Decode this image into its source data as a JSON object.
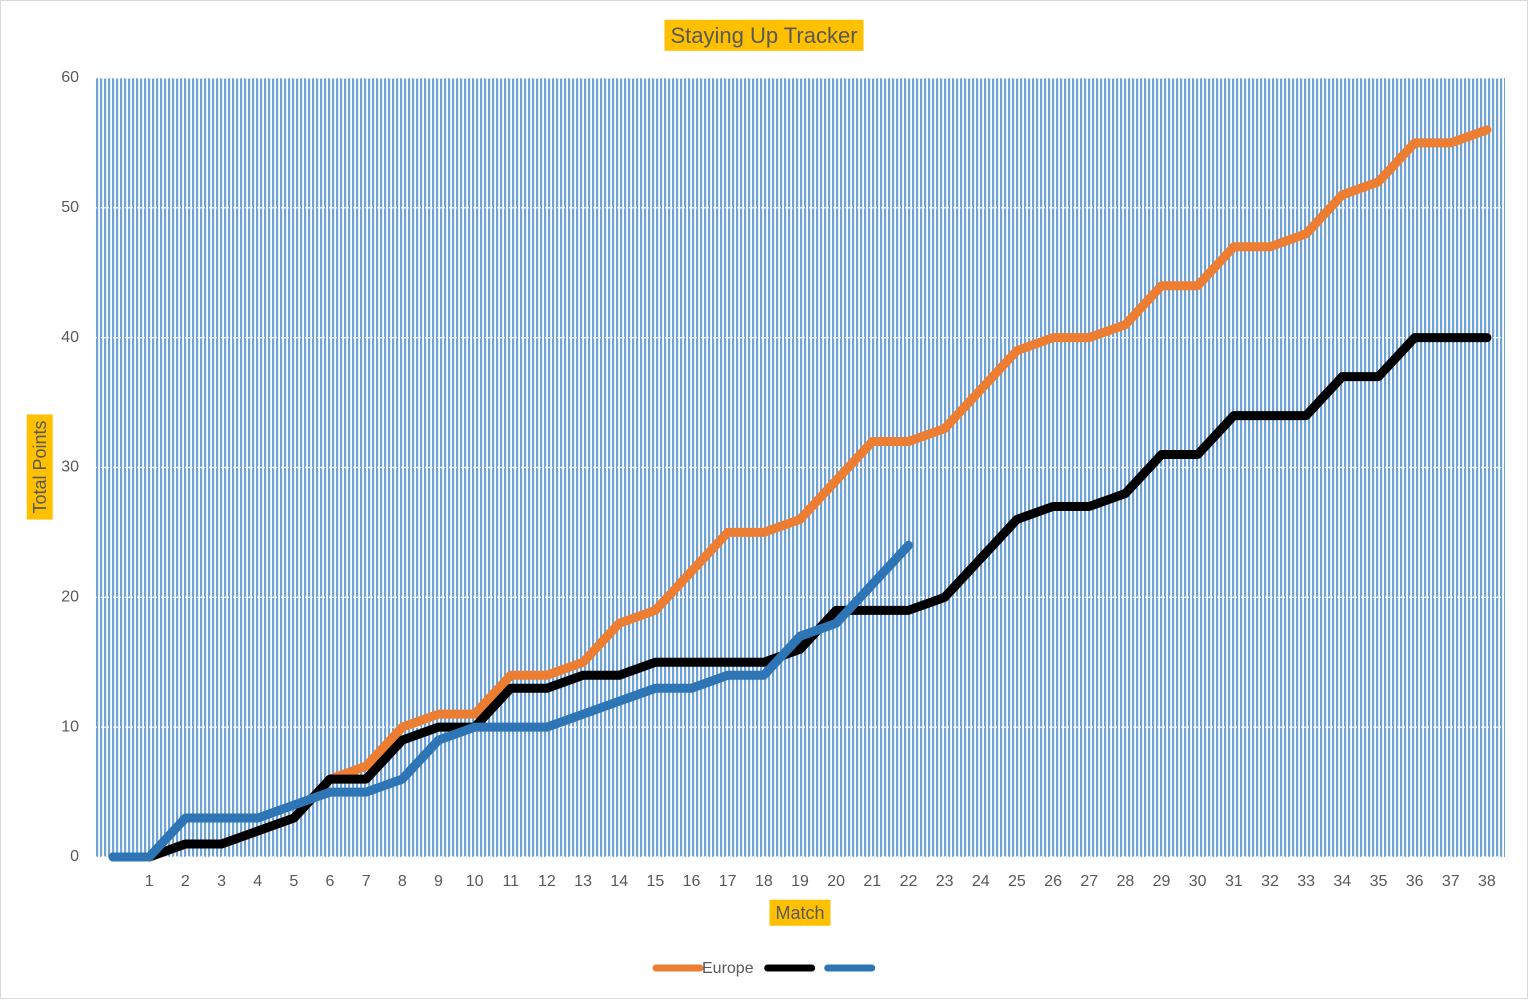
{
  "chart_data": {
    "type": "line",
    "title": "Staying Up Tracker",
    "x_label": "Match",
    "y_label": "Total Points",
    "categories": [
      null,
      "1",
      "2",
      "3",
      "4",
      "5",
      "6",
      "7",
      "8",
      "9",
      "10",
      "11",
      "12",
      "13",
      "14",
      "15",
      "16",
      "17",
      "18",
      "19",
      "20",
      "21",
      "22",
      "23",
      "24",
      "25",
      "26",
      "27",
      "28",
      "29",
      "30",
      "31",
      "32",
      "33",
      "34",
      "35",
      "36",
      "37",
      "38"
    ],
    "series": [
      {
        "name": "Europe",
        "color": "#ed7d31",
        "values": [
          0,
          0,
          1,
          1,
          2,
          3,
          6,
          7,
          10,
          11,
          11,
          14,
          14,
          15,
          18,
          19,
          22,
          25,
          25,
          26,
          29,
          32,
          32,
          33,
          36,
          39,
          40,
          40,
          41,
          44,
          44,
          47,
          47,
          48,
          51,
          52,
          55,
          55,
          56
        ]
      },
      {
        "color": "#000000",
        "values": [
          0,
          0,
          1,
          1,
          2,
          3,
          6,
          6,
          9,
          10,
          10,
          13,
          13,
          14,
          14,
          15,
          15,
          15,
          15,
          16,
          19,
          19,
          19,
          20,
          23,
          26,
          27,
          27,
          28,
          31,
          31,
          34,
          34,
          34,
          37,
          37,
          40,
          40,
          40
        ]
      },
      {
        "color": "#2e75b6",
        "values": [
          0,
          0,
          3,
          3,
          3,
          4,
          5,
          5,
          6,
          9,
          10,
          10,
          10,
          11,
          12,
          13,
          13,
          14,
          14,
          17,
          18,
          21,
          24,
          null,
          null,
          null,
          null,
          null,
          null,
          null,
          null,
          null,
          null,
          null,
          null,
          null,
          null,
          null,
          null
        ]
      }
    ],
    "ylim": [
      0,
      60
    ],
    "yticks": [
      0,
      10,
      20,
      30,
      40,
      50,
      60
    ],
    "grid": true,
    "legend": "bottom"
  }
}
